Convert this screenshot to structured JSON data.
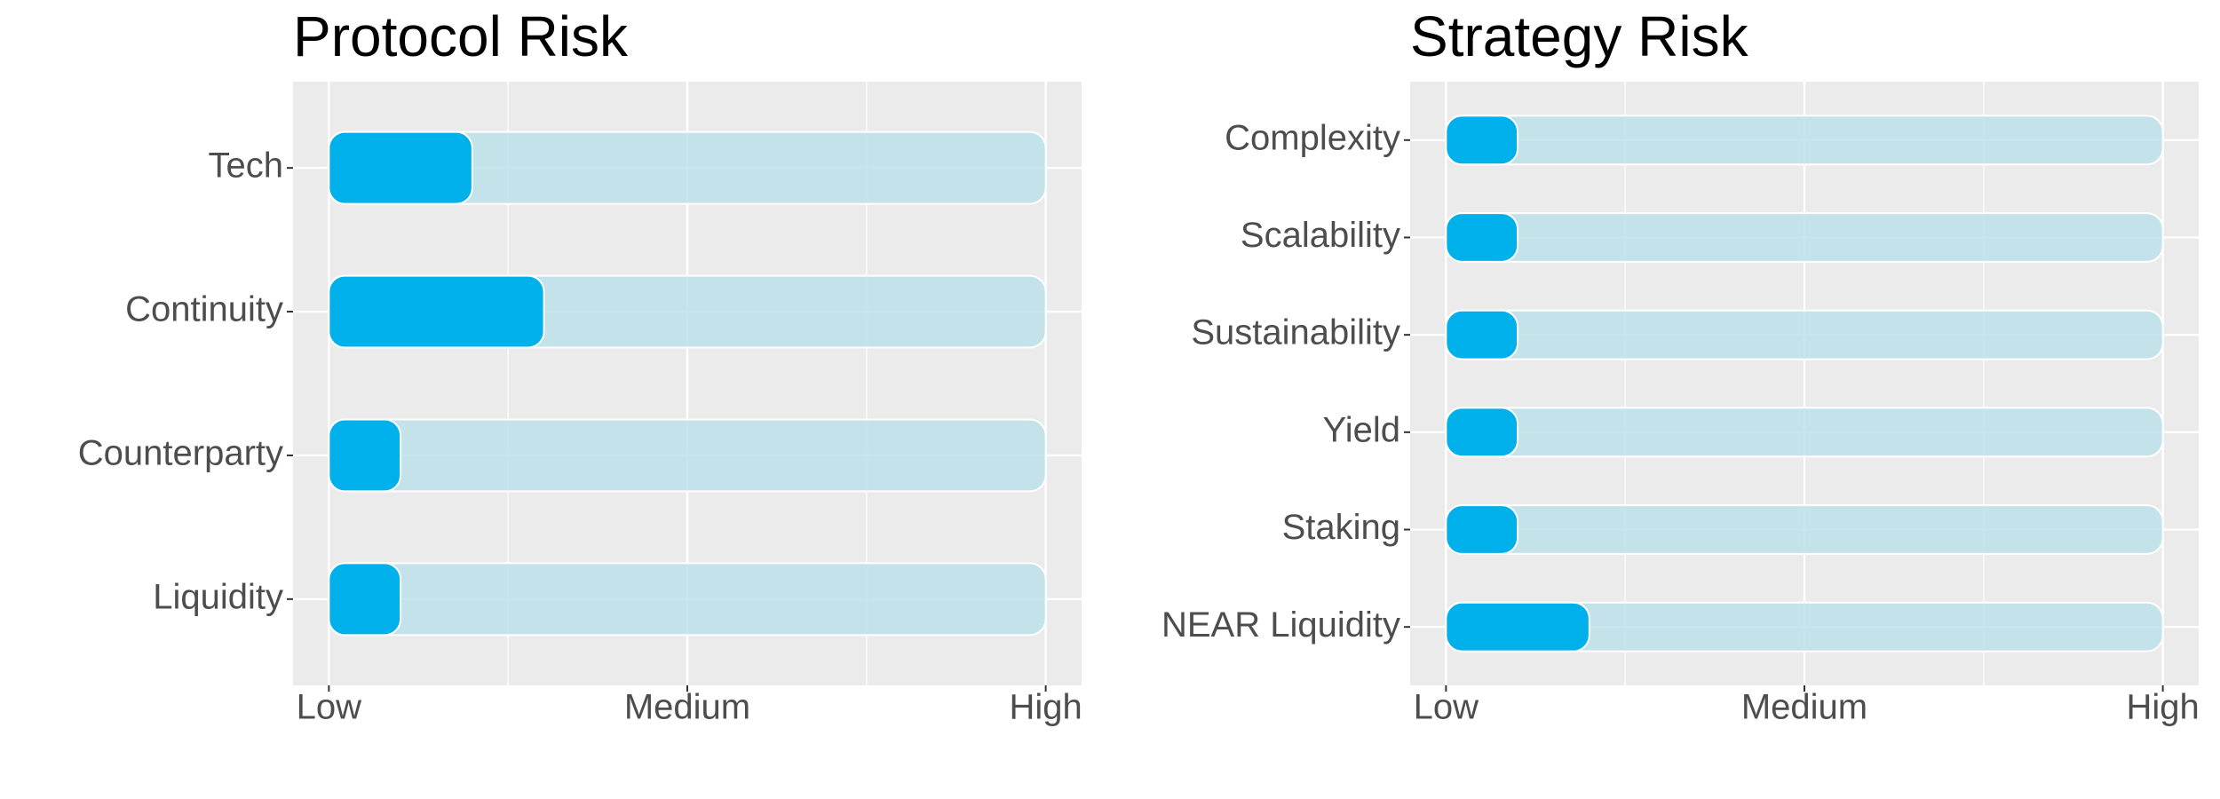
{
  "chart_data": [
    {
      "type": "bar",
      "orientation": "horizontal",
      "title": "Protocol Risk",
      "categories": [
        "Tech",
        "Continuity",
        "Counterparty",
        "Liquidity"
      ],
      "values": [
        2,
        3,
        1,
        1
      ],
      "color": "#00b0eb",
      "track_color": "#bde0ea",
      "xlim": [
        -0.5,
        10.5
      ],
      "xticks": [
        {
          "value": 0,
          "label": "Low"
        },
        {
          "value": 5,
          "label": "Medium"
        },
        {
          "value": 10,
          "label": "High"
        }
      ],
      "minor_xticks": [
        2.5,
        7.5
      ],
      "grid": true
    },
    {
      "type": "bar",
      "orientation": "horizontal",
      "title": "Strategy Risk",
      "categories": [
        "Complexity",
        "Scalability",
        "Sustainability",
        "Yield",
        "Staking",
        "NEAR Liquidity"
      ],
      "values": [
        1,
        1,
        1,
        1,
        1,
        2
      ],
      "color": "#00b0eb",
      "track_color": "#bde0ea",
      "xlim": [
        -0.5,
        10.5
      ],
      "xticks": [
        {
          "value": 0,
          "label": "Low"
        },
        {
          "value": 5,
          "label": "Medium"
        },
        {
          "value": 10,
          "label": "High"
        }
      ],
      "minor_xticks": [
        2.5,
        7.5
      ],
      "grid": true
    }
  ]
}
